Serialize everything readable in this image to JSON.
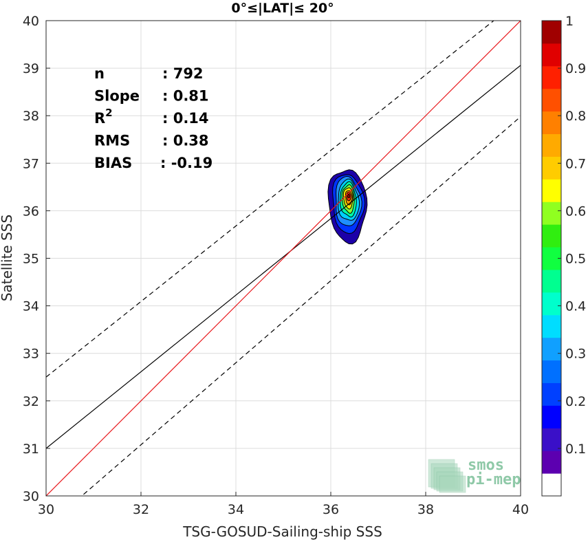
{
  "chart_data": {
    "type": "scatter",
    "title": "0°≤|LAT|≤ 20°",
    "xlabel": "TSG-GOSUD-Sailing-ship SSS",
    "ylabel": "Satellite SSS",
    "xlim": [
      30,
      40
    ],
    "ylim": [
      30,
      40
    ],
    "xticks": [
      "30",
      "32",
      "34",
      "36",
      "38",
      "40"
    ],
    "yticks": [
      "30",
      "31",
      "32",
      "33",
      "34",
      "35",
      "36",
      "37",
      "38",
      "39",
      "40"
    ],
    "grid": true,
    "stats": [
      {
        "label": "n",
        "value": ": 792"
      },
      {
        "label": "Slope",
        "value": ": 0.81"
      },
      {
        "label": "R",
        "sup": "2",
        "value": ": 0.14"
      },
      {
        "label": "RMS",
        "value": ": 0.38"
      },
      {
        "label": "BIAS",
        "value": ": -0.19"
      }
    ],
    "identity_line": {
      "color": "#e8181c",
      "points": [
        [
          30,
          30
        ],
        [
          40,
          40
        ]
      ]
    },
    "fit_line": {
      "color": "#000000",
      "points": [
        [
          30,
          31.0
        ],
        [
          40,
          39.06
        ]
      ]
    },
    "band_upper": {
      "style": "dashed",
      "points": [
        [
          30,
          32.5
        ],
        [
          40,
          40.45
        ]
      ]
    },
    "band_lower": {
      "style": "dashed",
      "points": [
        [
          30,
          29.35
        ],
        [
          40,
          37.98
        ]
      ]
    },
    "density_center": [
      36.37,
      36.28
    ],
    "density_levels": [
      {
        "level": 0.05,
        "color": "#1c00a8",
        "rx": 0.4,
        "ry": 0.77,
        "cx": 36.35,
        "cy": 36.12
      },
      {
        "level": 0.15,
        "color": "#0033ff",
        "rx": 0.33,
        "ry": 0.62,
        "cx": 36.36,
        "cy": 36.16
      },
      {
        "level": 0.25,
        "color": "#1f8fff",
        "rx": 0.27,
        "ry": 0.52,
        "cx": 36.36,
        "cy": 36.19
      },
      {
        "level": 0.35,
        "color": "#00d0ff",
        "rx": 0.22,
        "ry": 0.43,
        "cx": 36.37,
        "cy": 36.21
      },
      {
        "level": 0.45,
        "color": "#00ffa8",
        "rx": 0.17,
        "ry": 0.36,
        "cx": 36.37,
        "cy": 36.23
      },
      {
        "level": 0.55,
        "color": "#7dff3a",
        "rx": 0.13,
        "ry": 0.29,
        "cx": 36.37,
        "cy": 36.25
      },
      {
        "level": 0.65,
        "color": "#ffe600",
        "rx": 0.1,
        "ry": 0.22,
        "cx": 36.37,
        "cy": 36.27
      },
      {
        "level": 0.75,
        "color": "#ff9900",
        "rx": 0.07,
        "ry": 0.15,
        "cx": 36.38,
        "cy": 36.28
      },
      {
        "level": 0.85,
        "color": "#ff3300",
        "rx": 0.045,
        "ry": 0.09,
        "cx": 36.38,
        "cy": 36.3
      },
      {
        "level": 0.95,
        "color": "#b30000",
        "rx": 0.02,
        "ry": 0.04,
        "cx": 36.38,
        "cy": 36.31
      }
    ],
    "colorbar": {
      "range": [
        0,
        1
      ],
      "ticks": [
        "0.1",
        "0.2",
        "0.3",
        "0.4",
        "0.5",
        "0.6",
        "0.7",
        "0.8",
        "0.9",
        "1"
      ],
      "tick_values": [
        0.1,
        0.2,
        0.3,
        0.4,
        0.5,
        0.6,
        0.7,
        0.8,
        0.9,
        1.0
      ],
      "colors": [
        "#ffffff",
        "#5c00b0",
        "#3a10c8",
        "#0000ff",
        "#0040ff",
        "#0070ff",
        "#10a0ff",
        "#00ddff",
        "#00ffcc",
        "#00ff90",
        "#10ff40",
        "#30ee10",
        "#90ff20",
        "#ffff00",
        "#ffcc00",
        "#ffaa00",
        "#ff8000",
        "#ff5000",
        "#ff2000",
        "#e00000",
        "#a00000"
      ]
    },
    "logo": {
      "line1": "smos",
      "line2": "pi-mep"
    }
  }
}
